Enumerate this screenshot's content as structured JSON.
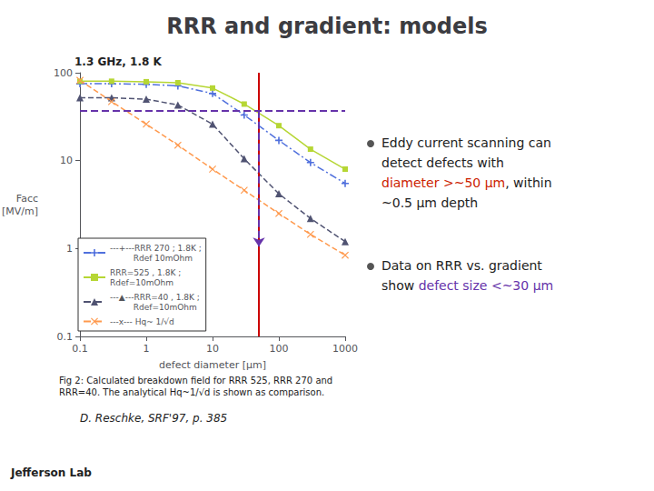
{
  "chart_data": {
    "type": "line",
    "title": "RRR and gradient: models",
    "x_label": "defect diameter [μm]",
    "y_label": "Facc\n[MV/m]",
    "log": true,
    "grid": false,
    "legend": "lower left",
    "xlim": [
      0.1,
      1000
    ],
    "xticks": [
      0.1,
      1,
      10,
      100,
      1000
    ],
    "ylim": [
      0.1,
      100
    ],
    "yticks": [
      0.1,
      1,
      10,
      100
    ],
    "x": [
      0.1,
      0.3,
      1.0,
      3.0,
      10.0,
      30.0,
      100.0,
      300.0,
      1000.0
    ],
    "series": [
      {
        "name": "---+---RRR 270 ; 1.8K ;\n         Rdef 10mOhm",
        "values": [
          75,
          75,
          74,
          71,
          58,
          33,
          17,
          9.5,
          5.5
        ],
        "marker": "plus",
        "line_style": "dashdot"
      },
      {
        "name": "RRR=525 , 1.8K ;\nRdef=10mOhm",
        "values": [
          80,
          80,
          79,
          77,
          67,
          44,
          25,
          13.5,
          8
        ],
        "marker": "square",
        "line_style": "solid"
      },
      {
        "name": "---▲---RRR=40 , 1.8K ;\n         Rdef=10mOhm",
        "values": [
          52,
          52,
          50,
          43,
          26,
          10.5,
          4.2,
          2.2,
          1.2
        ],
        "marker": "triangle",
        "line_style": "dashed"
      },
      {
        "name": "---x--- Hq~ 1/√d",
        "values": [
          82,
          47,
          26,
          15,
          8.0,
          4.6,
          2.5,
          1.45,
          0.84
        ],
        "marker": "x",
        "line_style": "dashed"
      }
    ],
    "reference_lines": [
      {
        "x": 50,
        "color": "#cc0000",
        "line_style": "solid"
      },
      {
        "y": 37,
        "color": "#6633aa",
        "line_style": "dashed"
      }
    ],
    "arrow": {
      "x": 50,
      "y_from": 37,
      "y_to": 1.05,
      "color": "#6633aa",
      "line_style": "dashed"
    },
    "annotations": [
      {
        "text": "1.3 GHz, 1.8 K"
      },
      {
        "text": "Fig 2: Calculated breakdown field for RRR 525, RRR 270 and\nRRR=40. The analytical Hq~1/√d is shown as comparison."
      },
      {
        "text": "D. Reschke, SRF'97, p. 385"
      },
      {
        "text": "Jefferson Lab"
      },
      {
        "lines": [
          [
            {
              "text": "Eddy current scanning can"
            }
          ],
          [
            {
              "text": "detect defects with"
            }
          ],
          [
            {
              "text": "diameter >~50 μm",
              "color": "#cc2200"
            },
            {
              "text": ", within"
            }
          ],
          [
            {
              "text": "~0.5 μm depth"
            }
          ]
        ]
      },
      {
        "lines": [
          [
            {
              "text": "Data on RRR vs. gradient"
            }
          ],
          [
            {
              "text": "show "
            },
            {
              "text": "defect size <~30 μm",
              "color": "#6633aa"
            }
          ]
        ]
      }
    ]
  }
}
